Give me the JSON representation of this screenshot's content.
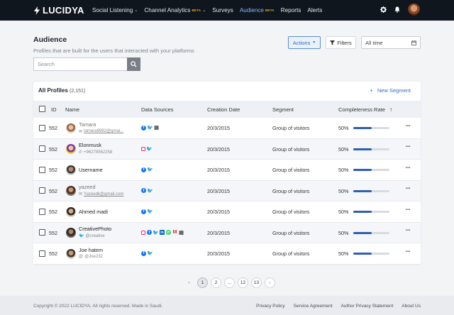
{
  "nav": {
    "logo": "LUCIDYA",
    "items": [
      {
        "label": "Social Listening",
        "beta": "",
        "chevron": true,
        "active": false
      },
      {
        "label": "Channel Analytics",
        "beta": "BETA",
        "chevron": true,
        "active": false
      },
      {
        "label": "Surveys",
        "beta": "",
        "chevron": false,
        "active": false
      },
      {
        "label": "Audience",
        "beta": "BETA",
        "chevron": false,
        "active": true
      },
      {
        "label": "Reports",
        "beta": "",
        "chevron": false,
        "active": false
      },
      {
        "label": "Alerts",
        "beta": "",
        "chevron": false,
        "active": false
      }
    ],
    "icons": [
      "gear-icon",
      "bell-icon"
    ]
  },
  "header": {
    "title": "Audience",
    "subtitle": "Profiles that are built for the users that interacted with your platforms",
    "search_placeholder": "Search",
    "actions_label": "Actions",
    "filters_label": "Filters",
    "date_value": "All time"
  },
  "table": {
    "title": "All Profiles",
    "count": "(2,151)",
    "new_segment": "New Segment",
    "columns": {
      "id": "ID",
      "name": "Name",
      "sources": "Data Sources",
      "created": "Creation Date",
      "segment": "Segment",
      "completeness": "Completeness Rate"
    },
    "rows": [
      {
        "id": "552",
        "name": "Tamara",
        "sub": "tamara9982@gmai...",
        "sub_icon": "email",
        "sources": [
          "fb",
          "tw",
          "doc"
        ],
        "date": "20/3/2015",
        "segment": "Group of visitors",
        "rate": "50%",
        "fill": 0.5
      },
      {
        "id": "552",
        "name": "Elonmusk",
        "sub": "+96278562258",
        "sub_icon": "phone",
        "sources": [
          "ig",
          "tw"
        ],
        "date": "20/3/2015",
        "segment": "Group of visitors",
        "rate": "50%",
        "fill": 0.5
      },
      {
        "id": "552",
        "name": "Username",
        "sub": "",
        "sub_icon": "",
        "sources": [
          "fb",
          "tw"
        ],
        "date": "20/3/2015",
        "segment": "Group of visitors",
        "rate": "50%",
        "fill": 0.5
      },
      {
        "id": "552",
        "name": "yazeed",
        "sub": "Yazeedk@gmail.com",
        "sub_icon": "email",
        "sources": [
          "fb",
          "tw"
        ],
        "date": "20/3/2015",
        "segment": "Group of visitors",
        "rate": "50%",
        "fill": 0.5
      },
      {
        "id": "552",
        "name": "Ahmed madi",
        "sub": "",
        "sub_icon": "",
        "sources": [
          "fb",
          "tw"
        ],
        "date": "20/3/2015",
        "segment": "Group of visitors",
        "rate": "50%",
        "fill": 0.5
      },
      {
        "id": "552",
        "name": "CreativePhoto",
        "sub": "@creative",
        "sub_icon": "twitter",
        "sources": [
          "ig",
          "fb",
          "tw",
          "li",
          "wa",
          "gm",
          "doc"
        ],
        "date": "20/3/2015",
        "segment": "Group of visitors",
        "rate": "50%",
        "fill": 0.5
      },
      {
        "id": "552",
        "name": "Joe hatem",
        "sub": "@Joe232",
        "sub_icon": "at",
        "sources": [
          "fb",
          "tw"
        ],
        "date": "20/3/2015",
        "segment": "Group of visitors",
        "rate": "50%",
        "fill": 0.5
      }
    ]
  },
  "pagination": {
    "pages": [
      "1",
      "2",
      "...",
      "12",
      "13"
    ],
    "active": "1"
  },
  "footer": {
    "copyright": "Copyright © 2022 LUCIDYA. All rights reserved. Made in Saudi.",
    "links": [
      "Privacy Policy",
      "Service Agreement",
      "Author Privacy Statement",
      "About Us"
    ]
  },
  "colors": {
    "nav_bg": "#10161e",
    "accent": "#2f6fc4",
    "beta": "#e0a72b",
    "progress_fill": "#2f5fb3"
  }
}
